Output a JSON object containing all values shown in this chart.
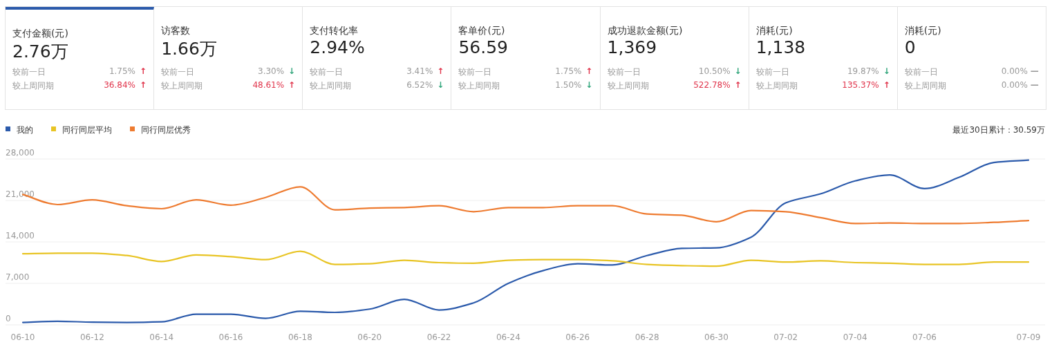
{
  "chart_data": [
    {
      "type": "other",
      "title": "支付金额(元)",
      "subtitle": "2.76万",
      "annotations": [
        "较前一日",
        "1.75%",
        "↑",
        "较上周同期",
        "36.84%",
        "↑"
      ],
      "colors": [
        "#999999",
        "#999999",
        "#e0334a",
        "#999999",
        "#e0334a",
        "#e0334a"
      ]
    },
    {
      "type": "other",
      "title": "访客数",
      "subtitle": "1.66万",
      "annotations": [
        "较前一日",
        "3.30%",
        "↓",
        "较上周同期",
        "48.61%",
        "↑"
      ],
      "colors": [
        "#999999",
        "#999999",
        "#2fa57a",
        "#999999",
        "#e0334a",
        "#e0334a"
      ]
    },
    {
      "type": "other",
      "title": "支付转化率",
      "subtitle": "2.94%",
      "annotations": [
        "较前一日",
        "3.41%",
        "↑",
        "较上周同期",
        "6.52%",
        "↓"
      ],
      "colors": [
        "#999999",
        "#999999",
        "#e0334a",
        "#999999",
        "#999999",
        "#2fa57a"
      ]
    },
    {
      "type": "other",
      "title": "客单价(元)",
      "subtitle": "56.59",
      "annotations": [
        "较前一日",
        "1.75%",
        "↑",
        "较上周同期",
        "1.50%",
        "↓"
      ],
      "colors": [
        "#999999",
        "#999999",
        "#e0334a",
        "#999999",
        "#999999",
        "#2fa57a"
      ]
    },
    {
      "type": "other",
      "title": "成功退款金额(元)",
      "subtitle": "1,369",
      "annotations": [
        "较前一日",
        "10.50%",
        "↓",
        "较上周同期",
        "522.78%",
        "↑"
      ],
      "colors": [
        "#999999",
        "#999999",
        "#2fa57a",
        "#999999",
        "#e0334a",
        "#e0334a"
      ]
    },
    {
      "type": "other",
      "title": "消耗(元)",
      "subtitle": "1,138",
      "annotations": [
        "较前一日",
        "19.87%",
        "↓",
        "较上周同期",
        "135.37%",
        "↑"
      ],
      "colors": [
        "#999999",
        "#999999",
        "#2fa57a",
        "#999999",
        "#e0334a",
        "#e0334a"
      ]
    },
    {
      "type": "other",
      "title": "消耗(元)",
      "subtitle": "0",
      "annotations": [
        "较前一日",
        "0.00%",
        "—",
        "较上周同期",
        "0.00%",
        "—"
      ],
      "colors": [
        "#999999",
        "#999999",
        "#999999",
        "#999999",
        "#999999",
        "#999999"
      ]
    },
    {
      "type": "line",
      "annotations": [
        "最近30日累计：30.59万"
      ],
      "legend": "top left",
      "grid": "y",
      "categories": [
        "06-10",
        null,
        "06-12",
        null,
        "06-14",
        null,
        "06-16",
        null,
        "06-18",
        null,
        "06-20",
        null,
        "06-22",
        null,
        "06-24",
        null,
        "06-26",
        null,
        "06-28",
        null,
        "06-30",
        null,
        "07-02",
        null,
        "07-04",
        null,
        "07-06",
        null,
        null,
        "07-09"
      ],
      "ylim": [
        0,
        28000
      ],
      "yticks": [
        0,
        {
          "value": 7000,
          "label": "7,000"
        },
        {
          "value": 14000,
          "label": "14,000"
        },
        {
          "value": 21000,
          "label": "21,000"
        },
        {
          "value": 28000,
          "label": "28,000"
        }
      ],
      "series": [
        {
          "name": "我的",
          "color": "#2b5aab",
          "values": [
            400,
            600,
            450,
            400,
            500,
            1800,
            1800,
            1100,
            2300,
            2100,
            2650,
            4300,
            2500,
            3700,
            7000,
            9150,
            10300,
            10100,
            11700,
            12900,
            13000,
            14800,
            20600,
            22100,
            24300,
            25300,
            23000,
            24900,
            27400,
            27800
          ]
        },
        {
          "name": "同行同层平均",
          "color": "#e8c424",
          "values": [
            12000,
            12100,
            12100,
            11700,
            10700,
            11800,
            11500,
            11000,
            12400,
            10200,
            10300,
            10900,
            10500,
            10400,
            10900,
            11000,
            11000,
            10800,
            10200,
            10000,
            9900,
            10900,
            10600,
            10800,
            10500,
            10400,
            10200,
            10200,
            10600,
            10600
          ]
        },
        {
          "name": "同行同层优秀",
          "color": "#ee7b30",
          "values": [
            22000,
            20300,
            21100,
            20100,
            19600,
            21100,
            20200,
            21500,
            23300,
            19400,
            19700,
            19800,
            20100,
            19100,
            19800,
            19800,
            20100,
            20100,
            18700,
            18500,
            17400,
            19300,
            19100,
            18100,
            17100,
            17200,
            17100,
            17100,
            17300,
            17600
          ]
        }
      ]
    }
  ]
}
